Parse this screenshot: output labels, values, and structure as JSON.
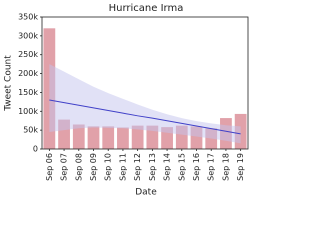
{
  "chart_data": {
    "type": "bar",
    "title": "Hurricane Irma",
    "x_label": "Date",
    "y_label": "Tweet Count",
    "categories": [
      "Sep 06",
      "Sep 07",
      "Sep 08",
      "Sep 09",
      "Sep 10",
      "Sep 11",
      "Sep 12",
      "Sep 13",
      "Sep 14",
      "Sep 15",
      "Sep 16",
      "Sep 17",
      "Sep 18",
      "Sep 19"
    ],
    "values": [
      320000,
      78000,
      65000,
      60000,
      60000,
      57000,
      62000,
      62000,
      58000,
      62000,
      60000,
      55000,
      82000,
      93000
    ],
    "color": "#d98a94",
    "trend": {
      "color": "#4040c8",
      "values": [
        130000,
        123000,
        116000,
        109000,
        102000,
        95000,
        88000,
        82000,
        75000,
        68000,
        61000,
        54000,
        47000,
        40000
      ]
    },
    "band": {
      "color": "#c4c4ee",
      "upper": [
        225000,
        205000,
        185000,
        165000,
        148000,
        133000,
        118000,
        104000,
        92000,
        82000,
        74000,
        68000,
        63000,
        60000
      ],
      "lower": [
        45000,
        50000,
        55000,
        57000,
        56000,
        55000,
        52000,
        48000,
        43000,
        38000,
        33000,
        28000,
        22000,
        15000
      ]
    },
    "ylim": [
      0,
      350000
    ],
    "yticks": [
      0,
      {
        "value": 50000,
        "label": "50k"
      },
      {
        "value": 100000,
        "label": "100k"
      },
      {
        "value": 150000,
        "label": "150k"
      },
      {
        "value": 200000,
        "label": "200k"
      },
      {
        "value": 250000,
        "label": "250k"
      },
      {
        "value": 300000,
        "label": "300k"
      },
      {
        "value": 350000,
        "label": "350k"
      }
    ]
  }
}
